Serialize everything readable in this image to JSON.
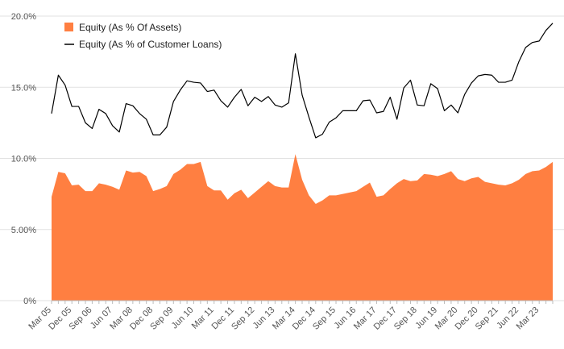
{
  "chart_data": {
    "type": "area",
    "x_tick_labels": [
      "Mar 05",
      "Dec 05",
      "Sep 06",
      "Jun 07",
      "Mar 08",
      "Dec 08",
      "Sep 09",
      "Jun 10",
      "Mar 11",
      "Dec 11",
      "Sep 12",
      "Jun 13",
      "Mar 14",
      "Dec 14",
      "Sep 15",
      "Jun 16",
      "Mar 17",
      "Dec 17",
      "Sep 18",
      "Jun 19",
      "Mar 20",
      "Dec 20",
      "Sep 21",
      "Jun 22",
      "Mar 23"
    ],
    "y_ticks": [
      {
        "value": 0,
        "label": "0%"
      },
      {
        "value": 5,
        "label": "5.00%"
      },
      {
        "value": 10,
        "label": "10.0%"
      },
      {
        "value": 15,
        "label": "15.0%"
      },
      {
        "value": 20,
        "label": "20.0%"
      }
    ],
    "ylim": [
      0,
      20
    ],
    "x_start": "Mar 05",
    "x_end": "Dec 23",
    "x_frequency": "quarterly",
    "legend_position": "top-left",
    "grid": "horizontal",
    "series": [
      {
        "name": "Equity (As % Of Assets)",
        "type": "area",
        "color": "#FF7F41",
        "values": [
          7.3,
          9.05,
          8.95,
          8.1,
          8.15,
          7.7,
          7.7,
          8.25,
          8.15,
          8.0,
          7.8,
          9.15,
          9.0,
          9.05,
          8.75,
          7.7,
          7.85,
          8.05,
          8.9,
          9.2,
          9.6,
          9.6,
          9.75,
          8.05,
          7.75,
          7.75,
          7.1,
          7.55,
          7.8,
          7.2,
          7.6,
          8.0,
          8.4,
          8.05,
          7.95,
          7.95,
          10.3,
          8.5,
          7.4,
          6.8,
          7.05,
          7.4,
          7.4,
          7.5,
          7.6,
          7.7,
          8.0,
          8.3,
          7.3,
          7.4,
          7.85,
          8.25,
          8.55,
          8.4,
          8.45,
          8.9,
          8.85,
          8.75,
          8.9,
          9.1,
          8.55,
          8.4,
          8.6,
          8.7,
          8.35,
          8.25,
          8.15,
          8.1,
          8.25,
          8.5,
          8.9,
          9.1,
          9.15,
          9.4,
          9.75
        ]
      },
      {
        "name": "Equity (As % of Customer Loans)",
        "type": "line",
        "color": "#000000",
        "values": [
          13.15,
          15.85,
          15.15,
          13.65,
          13.65,
          12.5,
          12.1,
          13.45,
          13.15,
          12.3,
          11.85,
          13.85,
          13.7,
          13.15,
          12.75,
          11.65,
          11.65,
          12.2,
          14.0,
          14.8,
          15.45,
          15.35,
          15.3,
          14.7,
          14.8,
          14.05,
          13.6,
          14.3,
          14.85,
          13.7,
          14.3,
          14.0,
          14.35,
          13.75,
          13.6,
          13.9,
          17.35,
          14.45,
          12.9,
          11.45,
          11.7,
          12.55,
          12.85,
          13.35,
          13.35,
          13.35,
          14.05,
          14.1,
          13.2,
          13.3,
          14.3,
          12.75,
          14.95,
          15.5,
          13.75,
          13.7,
          15.25,
          14.9,
          13.35,
          13.75,
          13.2,
          14.5,
          15.3,
          15.8,
          15.9,
          15.85,
          15.35,
          15.35,
          15.5,
          16.8,
          17.8,
          18.15,
          18.25,
          19.0,
          19.5
        ]
      }
    ]
  }
}
